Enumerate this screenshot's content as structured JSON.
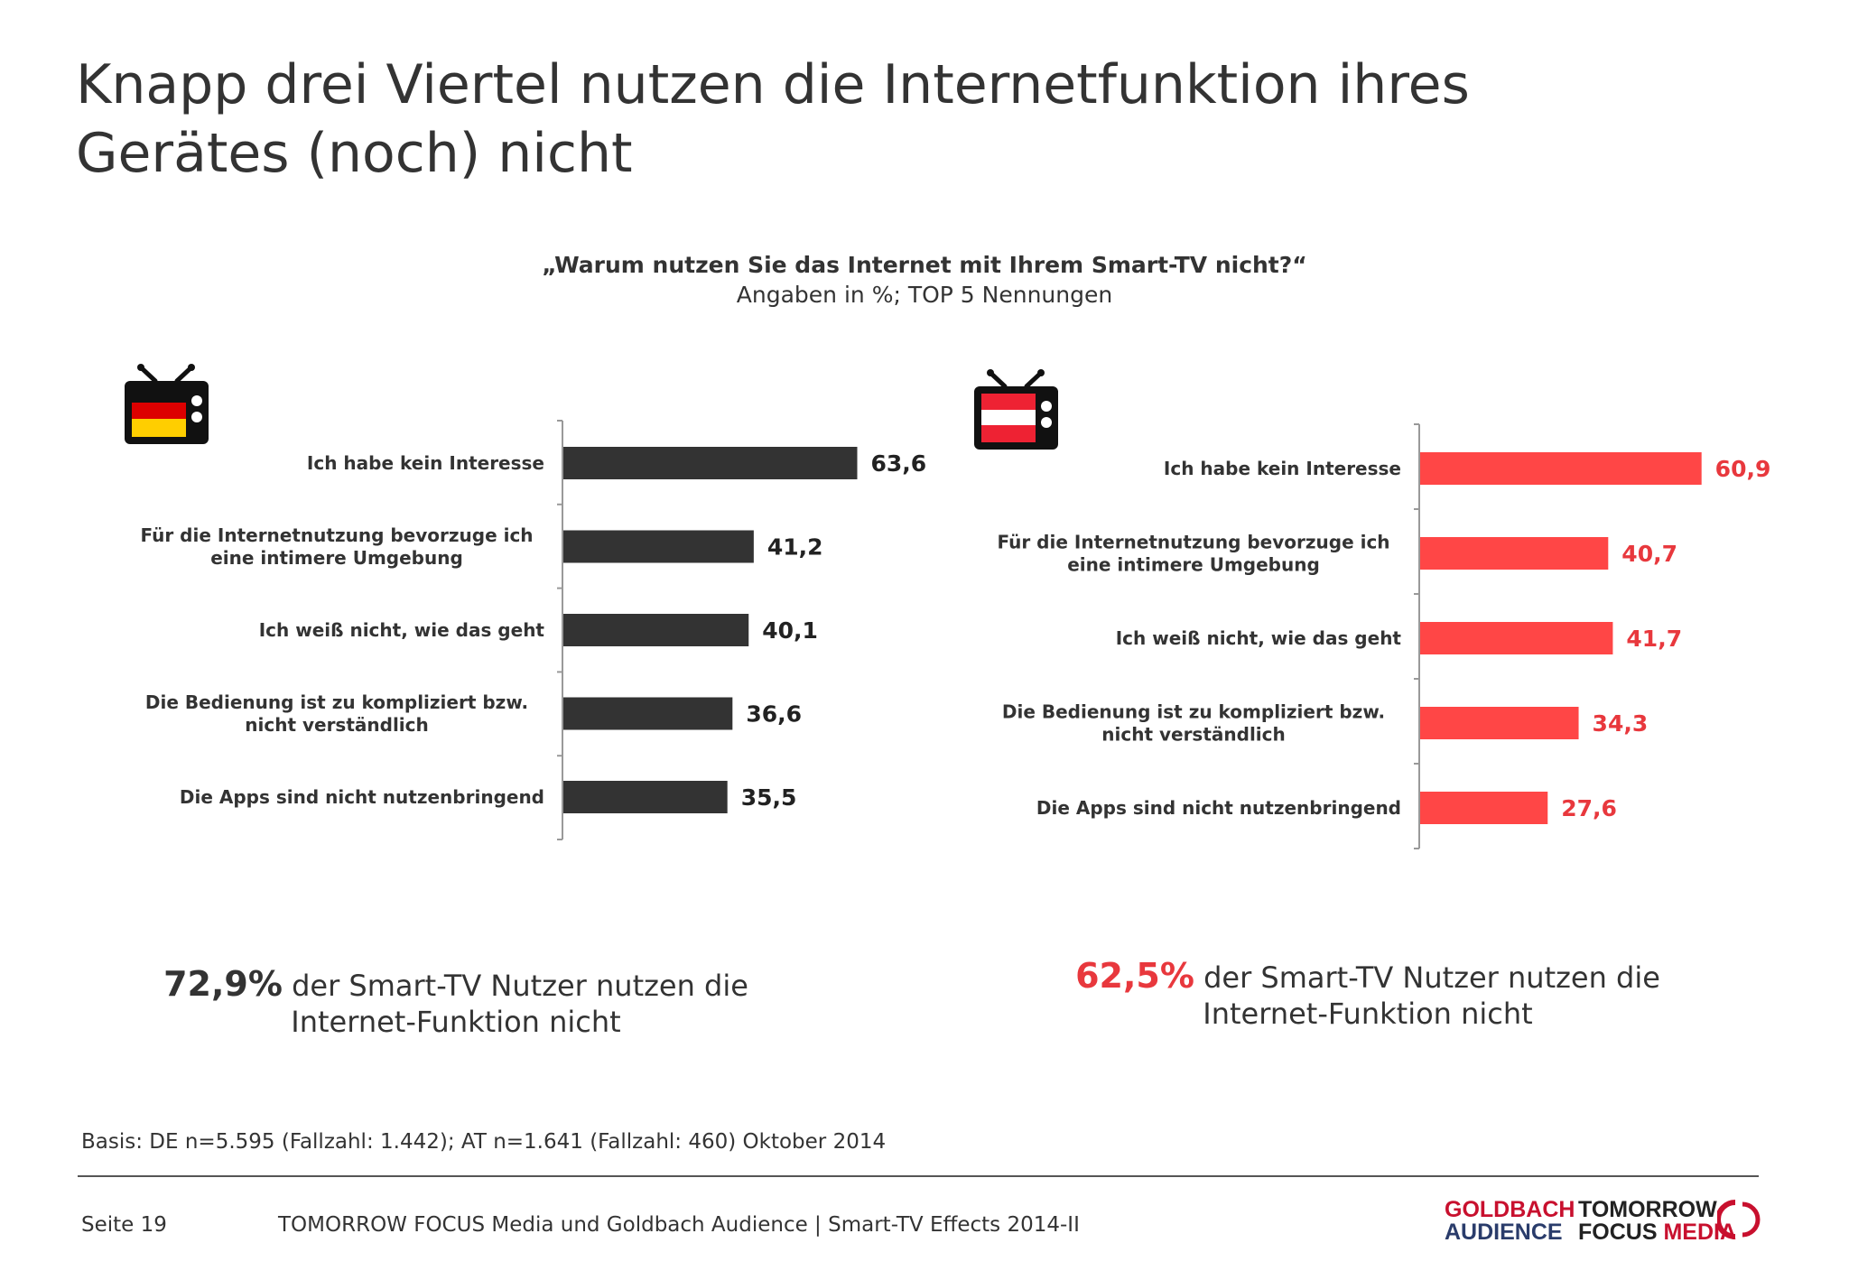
{
  "title_line1": "Knapp drei Viertel nutzen die Internetfunktion ihres",
  "title_line2": "Gerätes (noch) nicht",
  "question": "„Warum nutzen Sie das Internet mit Ihrem Smart-TV nicht?“",
  "subquestion": "Angaben in %; TOP 5 Nennungen",
  "colors": {
    "de_bar": "#333333",
    "at_bar": "#ff4646",
    "at_text": "#e8383d"
  },
  "chart_data": [
    {
      "type": "bar",
      "orientation": "horizontal",
      "country_icon": "germany-flag-tv-icon",
      "categories": [
        [
          "Ich habe kein Interesse"
        ],
        [
          "Für die Internetnutzung bevorzuge ich",
          "eine intimere Umgebung"
        ],
        [
          "Ich weiß nicht, wie das geht"
        ],
        [
          "Die Bedienung ist zu kompliziert bzw.",
          "nicht verständlich"
        ],
        [
          "Die Apps sind nicht nutzenbringend"
        ]
      ],
      "values": [
        63.6,
        41.2,
        40.1,
        36.6,
        35.5
      ],
      "value_labels": [
        "63,6",
        "41,2",
        "40,1",
        "36,6",
        "35,5"
      ],
      "color": "#333333"
    },
    {
      "type": "bar",
      "orientation": "horizontal",
      "country_icon": "austria-flag-tv-icon",
      "categories": [
        [
          "Ich habe kein Interesse"
        ],
        [
          "Für die Internetnutzung bevorzuge ich",
          "eine intimere Umgebung"
        ],
        [
          "Ich weiß nicht, wie das geht"
        ],
        [
          "Die Bedienung ist zu kompliziert bzw.",
          "nicht verständlich"
        ],
        [
          "Die Apps sind nicht nutzenbringend"
        ]
      ],
      "values": [
        60.9,
        40.7,
        41.7,
        34.3,
        27.6
      ],
      "value_labels": [
        "60,9",
        "40,7",
        "41,7",
        "34,3",
        "27,6"
      ],
      "color": "#ff4646"
    }
  ],
  "stats": {
    "de": {
      "big": "72,9%",
      "line1": " der Smart-TV Nutzer nutzen die",
      "line2": "Internet-Funktion nicht"
    },
    "at": {
      "big": "62,5%",
      "line1": " der Smart-TV Nutzer nutzen die",
      "line2": "Internet-Funktion nicht"
    },
    "center_icon": "no-satellite-icon"
  },
  "basis": "Basis: DE n=5.595 (Fallzahl: 1.442); AT n=1.641 (Fallzahl: 460) Oktober 2014",
  "footer": {
    "page": "Seite 19",
    "text": "TOMORROW FOCUS Media und Goldbach Audience | Smart-TV Effects 2014-II"
  },
  "logos": {
    "goldbach_1": "GOLDBACH",
    "goldbach_2": "AUDIENCE",
    "tf_1": "TOMORROW",
    "tf_2a": "FOCUS ",
    "tf_2b": "MEDIA"
  }
}
